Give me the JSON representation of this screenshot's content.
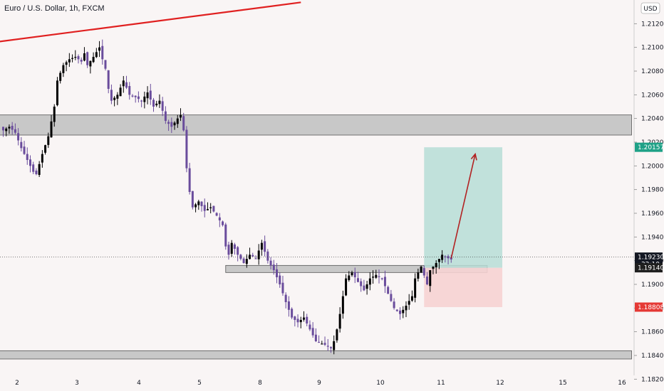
{
  "header": {
    "symbol": "Euro / U.S. Dollar, 1h, FXCM",
    "currency": "USD"
  },
  "colors": {
    "background": "#f9f5f5",
    "candle_up": "#000000",
    "candle_down": "#6a4c9c",
    "trendline": "#e02020",
    "zone_fill": "#c8c8c8",
    "target_fill": "#b7ddd6",
    "stop_fill": "#f6d3d3",
    "arrow": "#b22222",
    "target_tag": "#1fa187",
    "stop_tag": "#e53935",
    "current_tag": "#131722"
  },
  "chart_data": {
    "type": "candlestick",
    "title": "Euro / U.S. Dollar, 1h, FXCM",
    "currency": "USD",
    "y_range": [
      1.181,
      1.214
    ],
    "y_ticks": [
      "1.21200",
      "1.21000",
      "1.20800",
      "1.20600",
      "1.20400",
      "1.20200",
      "1.20000",
      "1.19800",
      "1.19600",
      "1.19400",
      "1.19200",
      "1.19000",
      "1.18800",
      "1.18600",
      "1.18400",
      "1.18200"
    ],
    "x_ticks": [
      "2",
      "3",
      "4",
      "5",
      "8",
      "9",
      "10",
      "11",
      "12",
      "15",
      "16"
    ],
    "price_tags": [
      {
        "label": "1.20157",
        "value": 1.20157,
        "kind": "target"
      },
      {
        "label": "1.19230",
        "value": 1.1923,
        "kind": "current",
        "sub": "32:10"
      },
      {
        "label": "1.19140",
        "value": 1.1914,
        "kind": "entry"
      },
      {
        "label": "1.18808",
        "value": 1.18808,
        "kind": "stop"
      }
    ],
    "waypoints": [
      [
        0,
        1.203
      ],
      [
        2,
        1.2033
      ],
      [
        4,
        1.2028
      ],
      [
        6,
        1.2015
      ],
      [
        8,
        1.2005
      ],
      [
        10,
        1.1995
      ],
      [
        11,
        1.1993
      ],
      [
        13,
        1.201
      ],
      [
        15,
        1.2025
      ],
      [
        17,
        1.205
      ],
      [
        18,
        1.2072
      ],
      [
        20,
        1.2085
      ],
      [
        22,
        1.209
      ],
      [
        24,
        1.2092
      ],
      [
        26,
        1.2088
      ],
      [
        27,
        1.2095
      ],
      [
        28,
        1.2085
      ],
      [
        30,
        1.2092
      ],
      [
        32,
        1.21
      ],
      [
        33,
        1.209
      ],
      [
        34,
        1.2082
      ],
      [
        35,
        1.2065
      ],
      [
        36,
        1.2055
      ],
      [
        38,
        1.206
      ],
      [
        40,
        1.2072
      ],
      [
        42,
        1.206
      ],
      [
        44,
        1.2058
      ],
      [
        46,
        1.2055
      ],
      [
        48,
        1.2062
      ],
      [
        50,
        1.205
      ],
      [
        52,
        1.2055
      ],
      [
        54,
        1.2038
      ],
      [
        56,
        1.2033
      ],
      [
        58,
        1.204
      ],
      [
        59,
        1.2043
      ],
      [
        60,
        1.203
      ],
      [
        61,
        1.1998
      ],
      [
        62,
        1.1978
      ],
      [
        63,
        1.1965
      ],
      [
        65,
        1.197
      ],
      [
        67,
        1.1962
      ],
      [
        69,
        1.1965
      ],
      [
        71,
        1.1958
      ],
      [
        73,
        1.195
      ],
      [
        74,
        1.1932
      ],
      [
        75,
        1.1925
      ],
      [
        76,
        1.1935
      ],
      [
        78,
        1.1925
      ],
      [
        80,
        1.1918
      ],
      [
        82,
        1.1925
      ],
      [
        84,
        1.1922
      ],
      [
        86,
        1.1935
      ],
      [
        88,
        1.192
      ],
      [
        90,
        1.1912
      ],
      [
        92,
        1.19
      ],
      [
        94,
        1.1885
      ],
      [
        96,
        1.1872
      ],
      [
        98,
        1.1868
      ],
      [
        100,
        1.1872
      ],
      [
        102,
        1.1862
      ],
      [
        104,
        1.1852
      ],
      [
        106,
        1.185
      ],
      [
        108,
        1.1848
      ],
      [
        109,
        1.1846
      ],
      [
        110,
        1.1852
      ],
      [
        111,
        1.1862
      ],
      [
        112,
        1.1875
      ],
      [
        113,
        1.189
      ],
      [
        114,
        1.1905
      ],
      [
        116,
        1.191
      ],
      [
        118,
        1.1902
      ],
      [
        120,
        1.1895
      ],
      [
        122,
        1.1905
      ],
      [
        124,
        1.1908
      ],
      [
        126,
        1.1905
      ],
      [
        128,
        1.1892
      ],
      [
        130,
        1.188
      ],
      [
        132,
        1.1875
      ],
      [
        134,
        1.1882
      ],
      [
        136,
        1.189
      ],
      [
        137,
        1.1905
      ],
      [
        139,
        1.1915
      ],
      [
        141,
        1.19
      ],
      [
        142,
        1.1912
      ],
      [
        144,
        1.1918
      ],
      [
        146,
        1.1925
      ],
      [
        147,
        1.1923
      ],
      [
        148,
        1.1922
      ],
      [
        149,
        1.1921
      ]
    ],
    "trendline": {
      "from": [
        -4,
        1.2104
      ],
      "to": [
        99,
        1.2138
      ]
    },
    "zones": [
      {
        "name": "upper-resistance-zone",
        "from": -4,
        "to": 209,
        "top": 1.2043,
        "bottom": 1.2026
      },
      {
        "name": "mid-support-zone",
        "from": 74,
        "to": 161,
        "top": 1.1916,
        "bottom": 1.191
      },
      {
        "name": "lower-support-zone",
        "from": -4,
        "to": 209,
        "top": 1.1844,
        "bottom": 1.1837
      }
    ],
    "position": {
      "from": 140,
      "to": 166,
      "target": 1.20157,
      "entry": 1.1914,
      "stop": 1.18808
    },
    "arrow": {
      "from": [
        149,
        1.1922
      ],
      "to": [
        157,
        1.201
      ]
    }
  }
}
